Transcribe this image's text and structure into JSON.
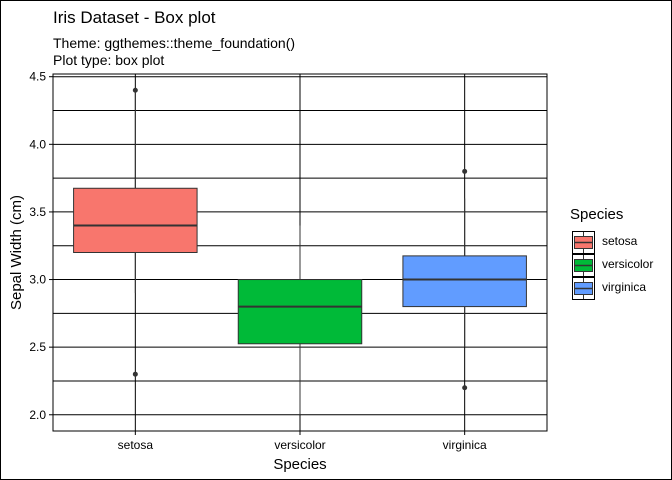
{
  "chart_data": {
    "type": "box",
    "title": "Iris Dataset - Box plot",
    "subtitle": [
      "Theme: ggthemes::theme_foundation()",
      "Plot type: box plot"
    ],
    "xlabel": "Species",
    "ylabel": "Sepal Width (cm)",
    "ylim": [
      1.88,
      4.52
    ],
    "yticks": [
      2.0,
      2.5,
      3.0,
      3.5,
      4.0,
      4.5
    ],
    "ytick_labels": [
      "2.0",
      "2.5",
      "3.0",
      "3.5",
      "4.0",
      "4.5"
    ],
    "categories": [
      "setosa",
      "versicolor",
      "virginica"
    ],
    "boxes": [
      {
        "category": "setosa",
        "min": 2.9,
        "q1": 3.2,
        "median": 3.4,
        "q3": 3.675,
        "max": 4.4,
        "outliers": [
          4.4,
          2.3
        ],
        "color": "#F8766D"
      },
      {
        "category": "versicolor",
        "min": 2.0,
        "q1": 2.525,
        "median": 2.8,
        "q3": 3.0,
        "max": 3.4,
        "outliers": [],
        "color": "#00BA38"
      },
      {
        "category": "virginica",
        "min": 2.5,
        "q1": 2.8,
        "median": 3.0,
        "q3": 3.175,
        "max": 3.6,
        "outliers": [
          3.8,
          2.2
        ],
        "color": "#619CFF"
      }
    ],
    "grid": true,
    "legend": {
      "title": "Species",
      "position": "right",
      "entries": [
        "setosa",
        "versicolor",
        "virginica"
      ]
    }
  }
}
